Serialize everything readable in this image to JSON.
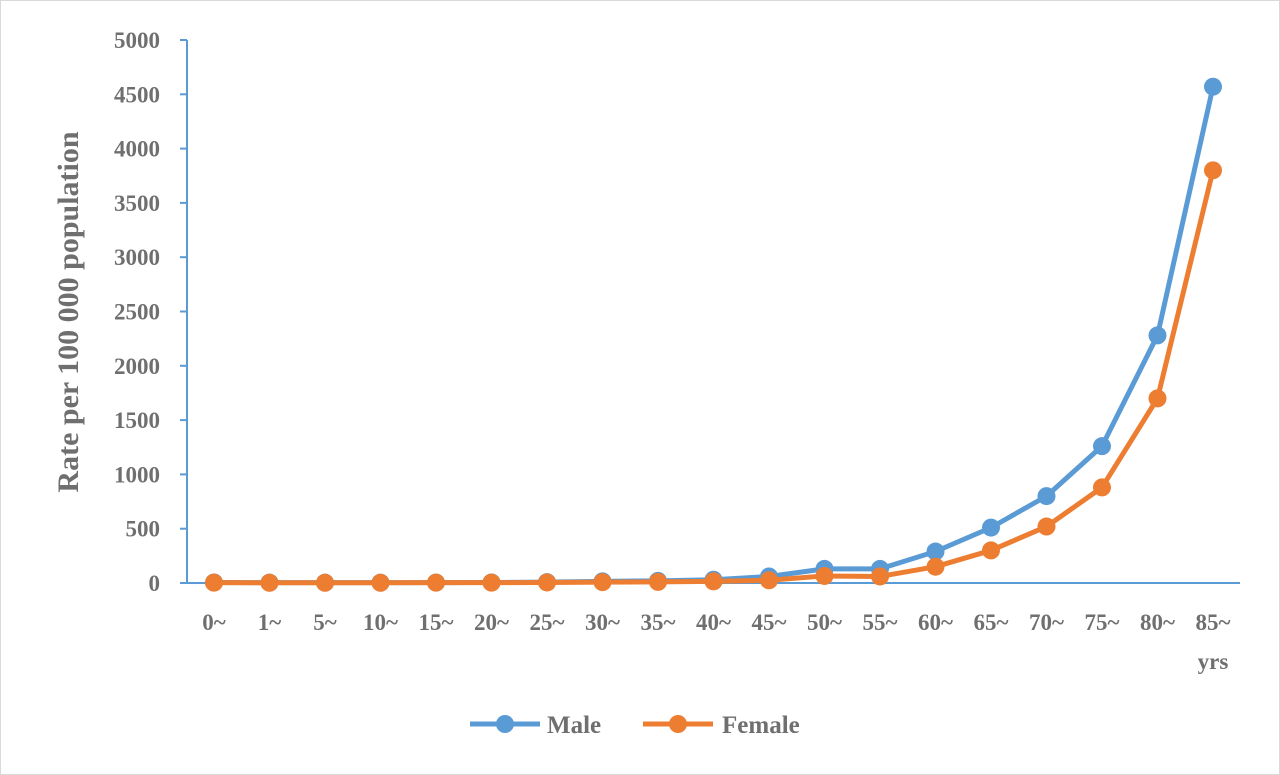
{
  "chart_data": {
    "type": "line",
    "title": "",
    "xlabel": "",
    "x_unit": "yrs",
    "ylabel": "Rate per 100 000 population",
    "ylim": [
      0,
      5000
    ],
    "yticks": [
      0,
      500,
      1000,
      1500,
      2000,
      2500,
      3000,
      3500,
      4000,
      4500,
      5000
    ],
    "categories": [
      "0~",
      "1~",
      "5~",
      "10~",
      "15~",
      "20~",
      "25~",
      "30~",
      "35~",
      "40~",
      "45~",
      "50~",
      "55~",
      "60~",
      "65~",
      "70~",
      "75~",
      "80~",
      "85~"
    ],
    "grid": false,
    "legend": "bottom",
    "series": [
      {
        "name": "Male",
        "color": "#5b9bd5",
        "values": [
          5,
          3,
          3,
          3,
          4,
          5,
          8,
          15,
          20,
          30,
          60,
          130,
          130,
          290,
          510,
          800,
          1260,
          2280,
          4570
        ]
      },
      {
        "name": "Female",
        "color": "#ed7d31",
        "values": [
          3,
          2,
          2,
          2,
          3,
          3,
          5,
          8,
          10,
          15,
          25,
          65,
          60,
          150,
          300,
          520,
          880,
          1700,
          3800
        ]
      }
    ]
  }
}
